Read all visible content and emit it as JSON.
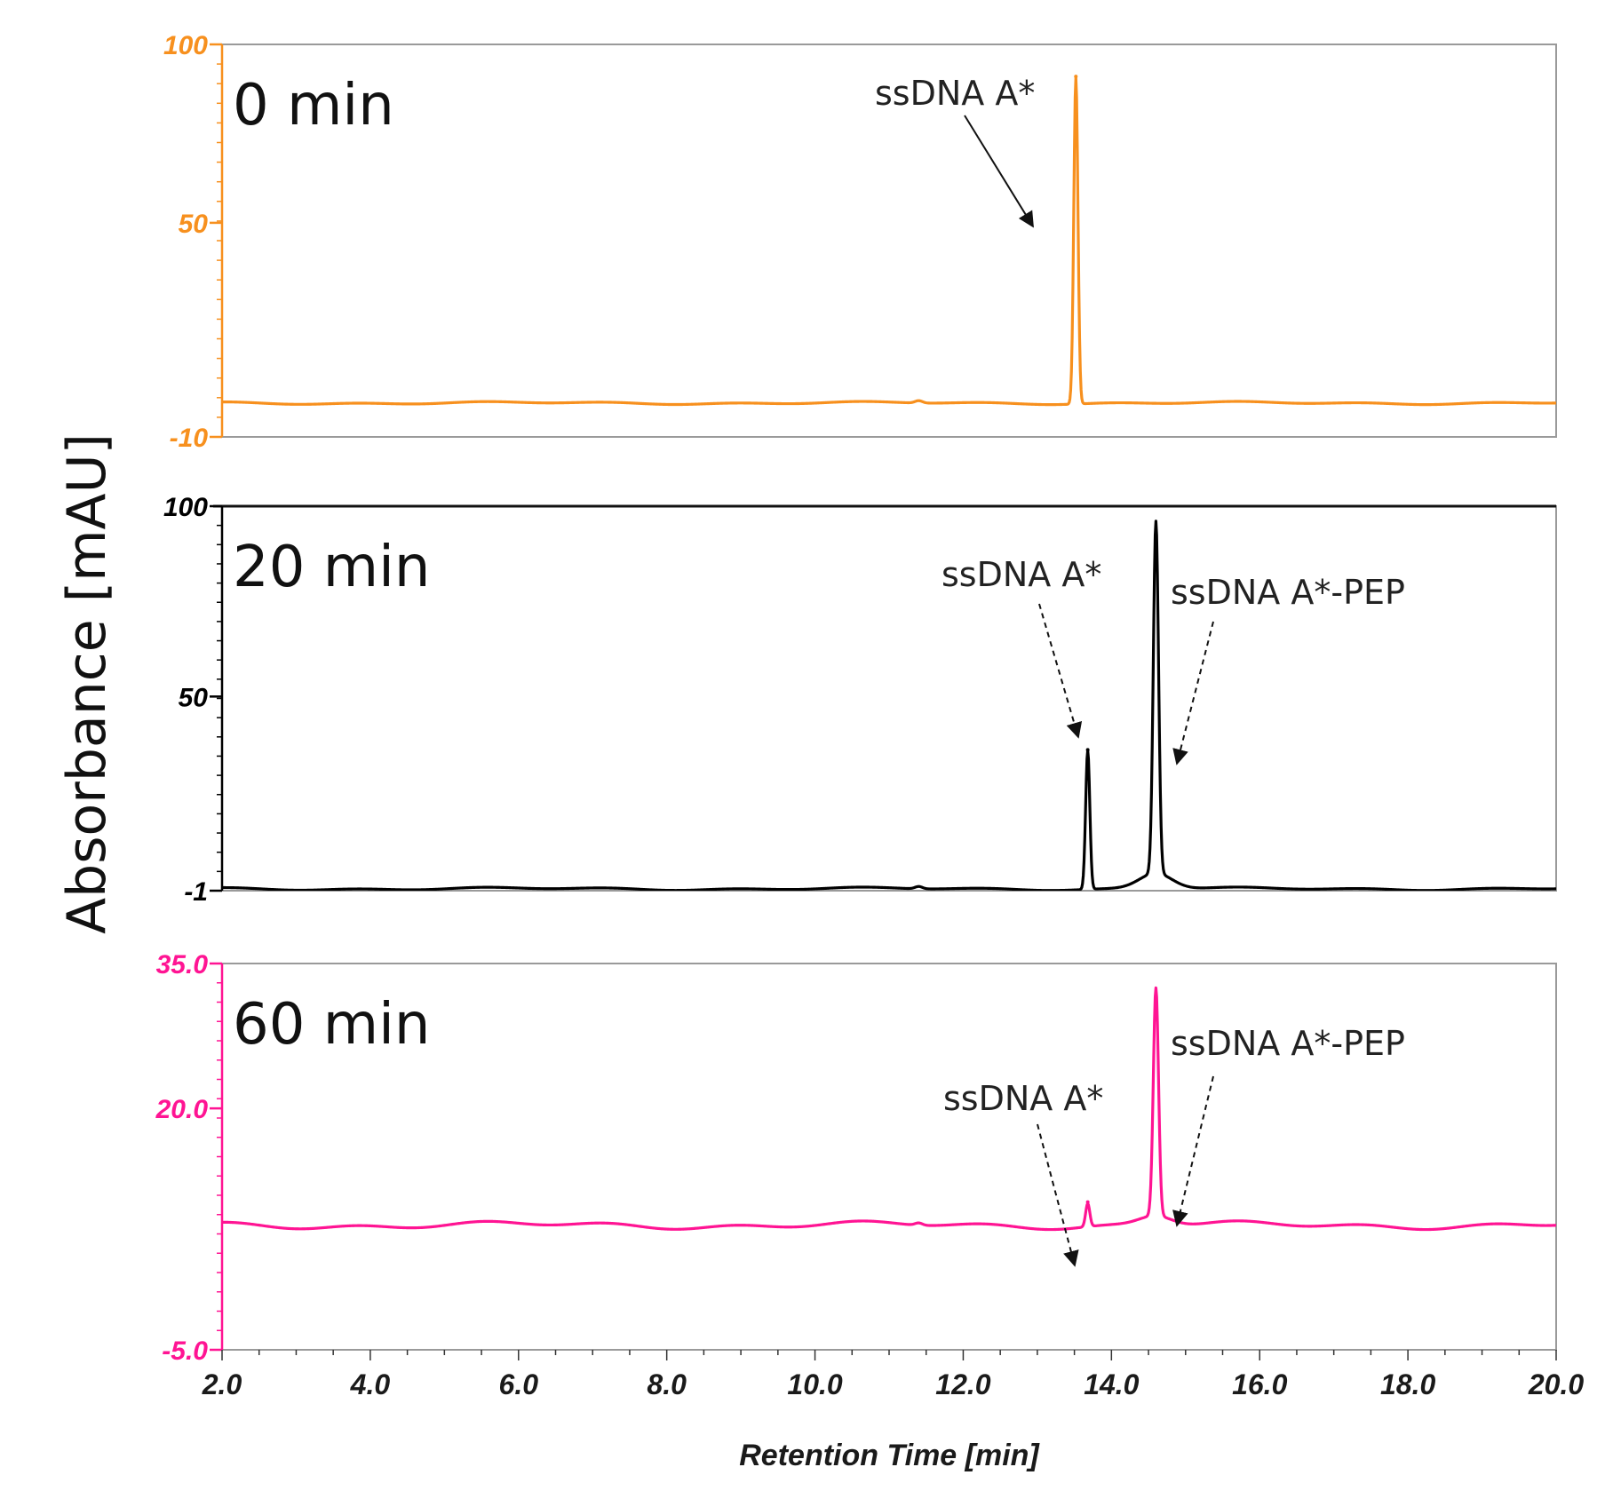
{
  "chart_data": {
    "type": "line",
    "xlabel": "Retention Time [min]",
    "ylabel": "Absorbance [mAU]",
    "xlim": [
      2.0,
      20.0
    ],
    "xticks": [
      "2.0",
      "4.0",
      "6.0",
      "8.0",
      "10.0",
      "12.0",
      "14.0",
      "16.0",
      "18.0",
      "20.0"
    ],
    "grid": false,
    "legend": "none",
    "panels": [
      {
        "title": "0 min",
        "color": "#f7901e",
        "ylim": [
          -10,
          100
        ],
        "yticks": [
          "100",
          "50",
          "-10"
        ],
        "tick_values": [
          100,
          50,
          -10
        ],
        "baseline": -0.5,
        "peaks": [
          {
            "x": 13.52,
            "y": 91,
            "label": "ssDNA A*"
          }
        ],
        "series": [
          {
            "x": [
              2.0,
              4.0,
              6.0,
              8.0,
              10.0,
              12.0,
              13.3,
              13.52,
              13.7,
              14.0,
              16.0,
              18.0,
              20.0
            ],
            "y": [
              -1.0,
              -0.5,
              -0.6,
              -0.3,
              0.0,
              0.3,
              1.5,
              91,
              1.0,
              0.5,
              0.2,
              0.0,
              0.0
            ]
          }
        ]
      },
      {
        "title": "20 min",
        "color": "#000000",
        "ylim": [
          -1,
          100
        ],
        "yticks": [
          "100",
          "50",
          "-1"
        ],
        "tick_values": [
          100,
          50,
          -1
        ],
        "baseline": -0.5,
        "peaks": [
          {
            "x": 13.68,
            "y": 36,
            "label": "ssDNA A*"
          },
          {
            "x": 14.6,
            "y": 92,
            "label": "ssDNA A*-PEP"
          }
        ],
        "series": [
          {
            "x": [
              2.0,
              4.0,
              6.0,
              8.0,
              10.0,
              11.4,
              12.0,
              13.68,
              14.0,
              14.6,
              15.0,
              16.0,
              18.0,
              20.0
            ],
            "y": [
              -1.0,
              -0.6,
              -0.5,
              -0.2,
              0.0,
              1.2,
              0.3,
              36,
              1.0,
              92,
              4.0,
              1.0,
              0.6,
              0.5
            ]
          }
        ]
      },
      {
        "title": "60 min",
        "color": "#ff1493",
        "ylim": [
          -5.0,
          35.0
        ],
        "yticks": [
          "35.0",
          "20.0",
          "-5.0"
        ],
        "tick_values": [
          35.0,
          20.0,
          -5.0
        ],
        "baseline": 7.9,
        "peaks": [
          {
            "x": 13.68,
            "y": 10.3,
            "label": "ssDNA A*"
          },
          {
            "x": 14.6,
            "y": 31.5,
            "label": "ssDNA A*-PEP"
          }
        ],
        "series": [
          {
            "x": [
              2.0,
              4.0,
              6.0,
              8.0,
              10.0,
              12.0,
              13.68,
              14.0,
              14.6,
              15.0,
              16.0,
              18.0,
              20.0
            ],
            "y": [
              7.9,
              7.9,
              8.0,
              8.1,
              8.2,
              8.4,
              10.3,
              8.9,
              31.5,
              9.8,
              8.7,
              8.6,
              8.6
            ]
          }
        ]
      }
    ]
  }
}
